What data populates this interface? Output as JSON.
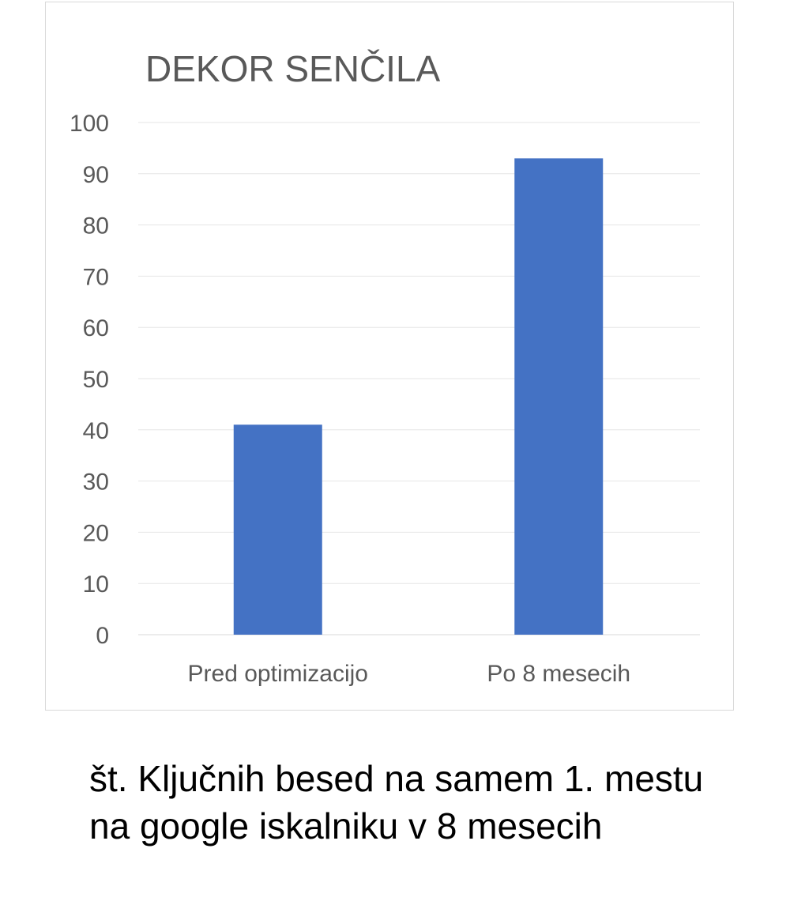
{
  "chart_data": {
    "type": "bar",
    "title": "DEKOR SENČILA",
    "categories": [
      "Pred optimizacijo",
      "Po 8 mesecih"
    ],
    "values": [
      41,
      93
    ],
    "ylim": [
      0,
      100
    ],
    "yticks": [
      0,
      10,
      20,
      30,
      40,
      50,
      60,
      70,
      80,
      90,
      100
    ],
    "grid": true,
    "legend": "none",
    "bar_color": "#4472C4"
  },
  "caption": {
    "line1": "št. Ključnih besed na samem 1. mestu",
    "line2": "na google iskalniku v 8 mesecih"
  }
}
